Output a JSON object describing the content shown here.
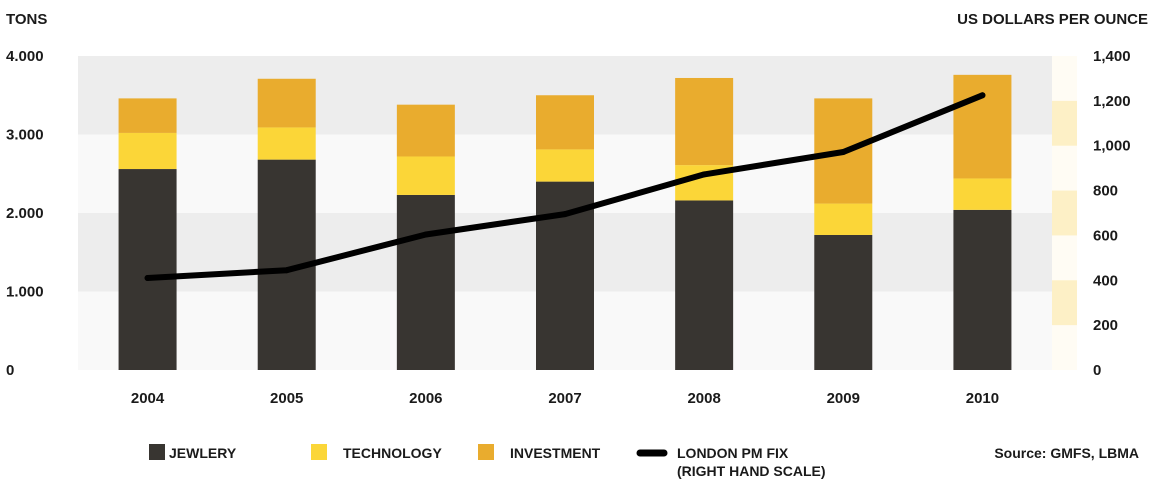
{
  "chart_data": {
    "type": "bar",
    "stacked": true,
    "categories": [
      "2004",
      "2005",
      "2006",
      "2007",
      "2008",
      "2009",
      "2010"
    ],
    "series": [
      {
        "name": "JEWLERY",
        "values": [
          2560,
          2680,
          2230,
          2400,
          2160,
          1720,
          2040
        ],
        "color": "#383531"
      },
      {
        "name": "TECHNOLOGY",
        "values": [
          460,
          410,
          490,
          410,
          450,
          400,
          400
        ],
        "color": "#fbd638"
      },
      {
        "name": "INVESTMENT",
        "values": [
          440,
          620,
          660,
          690,
          1110,
          1340,
          1320
        ],
        "color": "#e9ac2e"
      }
    ],
    "line": {
      "name": "LONDON PM FIX",
      "name_line2": "(RIGHT HAND SCALE)",
      "values": [
        410,
        445,
        604,
        695,
        872,
        972,
        1225
      ],
      "color": "#000000"
    },
    "left_axis": {
      "title": "TONS",
      "ticks": [
        0,
        1000,
        2000,
        3000,
        4000
      ],
      "tick_labels": [
        "0",
        "1.000",
        "2.000",
        "3.000",
        "4.000"
      ],
      "range": [
        0,
        4000
      ]
    },
    "right_axis": {
      "title": "US DOLLARS PER OUNCE",
      "ticks": [
        0,
        200,
        400,
        600,
        800,
        1000,
        1200,
        1400
      ],
      "tick_labels": [
        "0",
        "200",
        "400",
        "600",
        "800",
        "1,000",
        "1,200",
        "1,400"
      ],
      "range": [
        0,
        1400
      ]
    },
    "source": "Source: GMFS, LBMA",
    "legend_position": "bottom",
    "colors": {
      "band_light": "#f9f9f9",
      "band_dark": "#ededed",
      "right_strip": "#fffcf4",
      "right_strip_band": "#fdf0c6"
    }
  }
}
